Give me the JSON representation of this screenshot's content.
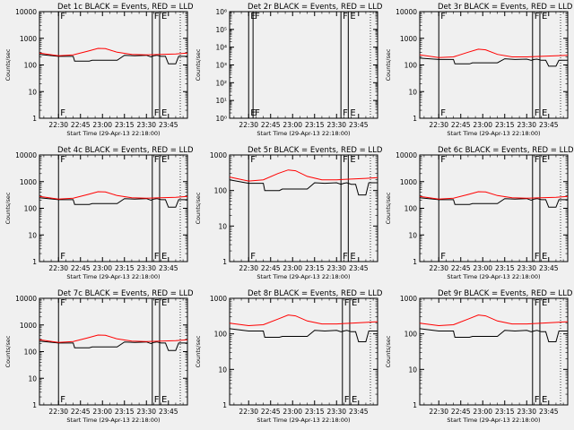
{
  "colors": {
    "background": "#f0f0f0",
    "events": "#000000",
    "lld": "#ff0000"
  },
  "shared": {
    "xlabel": "Start Time (29-Apr-13 22:18:00)",
    "ylabel": "Counts/sec",
    "x_tick_labels": [
      "22:30",
      "22:45",
      "23:00",
      "23:15",
      "23:30",
      "23:45"
    ],
    "x_ticks_minutes": [
      0,
      15,
      30,
      45,
      60,
      75
    ],
    "xlim_minutes_after_2230": [
      -13,
      88
    ],
    "marker_F": "F",
    "marker_E": "E"
  },
  "chart_data": [
    {
      "type": "line",
      "title": "Det 1c BLACK = Events, RED = LLD",
      "yscale": "log",
      "ylim": [
        1,
        10000
      ],
      "y_tick_labels": [
        "1",
        "10",
        "100",
        "1000",
        "10000"
      ],
      "series": [
        {
          "color": "events",
          "x": [
            -13,
            0,
            10,
            11,
            21,
            23,
            40,
            45,
            52,
            60,
            63,
            65,
            67,
            70,
            73,
            75,
            80,
            82,
            88
          ],
          "y": [
            250,
            210,
            210,
            140,
            140,
            150,
            150,
            230,
            220,
            230,
            200,
            220,
            230,
            210,
            210,
            110,
            110,
            210,
            210
          ]
        },
        {
          "color": "lld",
          "x": [
            -13,
            0,
            10,
            20,
            27,
            32,
            40,
            50,
            60,
            70,
            80,
            88
          ],
          "y": [
            280,
            220,
            240,
            330,
            420,
            410,
            300,
            250,
            240,
            250,
            260,
            280
          ]
        }
      ],
      "markers": [
        {
          "label": "F",
          "x": 0
        },
        {
          "label": "F",
          "x": 64
        },
        {
          "label": "E",
          "x": 69
        }
      ]
    },
    {
      "type": "line",
      "title": "Det 2r BLACK = Events, RED = LLD",
      "yscale": "log",
      "ylim": [
        1,
        1000000
      ],
      "y_tick_labels": [
        "10⁰",
        "10¹",
        "10²",
        "10³",
        "10⁴",
        "10⁵",
        "10⁶"
      ],
      "series": [],
      "markers": [
        {
          "label": "E",
          "x": 0
        },
        {
          "label": "F",
          "x": 3
        },
        {
          "label": "F",
          "x": 63
        },
        {
          "label": "E",
          "x": 68
        }
      ]
    },
    {
      "type": "line",
      "title": "Det 3r BLACK = Events, RED = LLD",
      "yscale": "log",
      "ylim": [
        1,
        10000
      ],
      "y_tick_labels": [
        "1",
        "10",
        "100",
        "1000",
        "10000"
      ],
      "series": [
        {
          "color": "events",
          "x": [
            -13,
            0,
            10,
            11,
            21,
            23,
            40,
            45,
            52,
            60,
            63,
            65,
            67,
            70,
            73,
            75,
            80,
            82,
            88
          ],
          "y": [
            180,
            160,
            160,
            110,
            110,
            120,
            120,
            170,
            160,
            165,
            150,
            160,
            165,
            150,
            150,
            90,
            90,
            150,
            150
          ]
        },
        {
          "color": "lld",
          "x": [
            -13,
            0,
            10,
            20,
            27,
            32,
            40,
            50,
            60,
            70,
            80,
            88
          ],
          "y": [
            240,
            190,
            200,
            300,
            390,
            370,
            250,
            200,
            200,
            210,
            220,
            230
          ]
        }
      ],
      "markers": [
        {
          "label": "F",
          "x": 0
        },
        {
          "label": "F",
          "x": 64
        },
        {
          "label": "E",
          "x": 69
        }
      ]
    },
    {
      "type": "line",
      "title": "Det 4c BLACK = Events, RED = LLD",
      "yscale": "log",
      "ylim": [
        1,
        10000
      ],
      "y_tick_labels": [
        "1",
        "10",
        "100",
        "1000",
        "10000"
      ],
      "series": [
        {
          "color": "events",
          "x": [
            -13,
            0,
            10,
            11,
            21,
            23,
            40,
            45,
            52,
            60,
            63,
            65,
            67,
            70,
            73,
            75,
            80,
            82,
            88
          ],
          "y": [
            250,
            210,
            210,
            140,
            140,
            150,
            150,
            230,
            220,
            230,
            200,
            220,
            230,
            210,
            210,
            110,
            110,
            210,
            210
          ]
        },
        {
          "color": "lld",
          "x": [
            -13,
            0,
            10,
            20,
            27,
            32,
            40,
            50,
            60,
            70,
            80,
            88
          ],
          "y": [
            280,
            220,
            240,
            330,
            420,
            410,
            300,
            250,
            240,
            250,
            260,
            280
          ]
        }
      ],
      "markers": [
        {
          "label": "F",
          "x": 0
        },
        {
          "label": "F",
          "x": 64
        },
        {
          "label": "E",
          "x": 69
        }
      ]
    },
    {
      "type": "line",
      "title": "Det 5r BLACK = Events, RED = LLD",
      "yscale": "log",
      "ylim": [
        1,
        1000
      ],
      "y_tick_labels": [
        "1",
        "10",
        "100",
        "1000"
      ],
      "series": [
        {
          "color": "events",
          "x": [
            -13,
            0,
            10,
            11,
            21,
            23,
            40,
            45,
            52,
            60,
            63,
            65,
            67,
            70,
            73,
            75,
            80,
            82,
            88
          ],
          "y": [
            200,
            160,
            160,
            100,
            100,
            110,
            110,
            165,
            160,
            165,
            150,
            160,
            165,
            150,
            150,
            75,
            75,
            165,
            165
          ]
        },
        {
          "color": "lld",
          "x": [
            -13,
            0,
            10,
            20,
            27,
            32,
            40,
            50,
            60,
            70,
            80,
            88
          ],
          "y": [
            240,
            185,
            200,
            300,
            380,
            360,
            250,
            200,
            200,
            210,
            220,
            230
          ]
        }
      ],
      "markers": [
        {
          "label": "F",
          "x": 0
        },
        {
          "label": "F",
          "x": 63
        },
        {
          "label": "E",
          "x": 68
        }
      ]
    },
    {
      "type": "line",
      "title": "Det 6c BLACK = Events, RED = LLD",
      "yscale": "log",
      "ylim": [
        1,
        10000
      ],
      "y_tick_labels": [
        "1",
        "10",
        "100",
        "1000",
        "10000"
      ],
      "series": [
        {
          "color": "events",
          "x": [
            -13,
            0,
            10,
            11,
            21,
            23,
            40,
            45,
            52,
            60,
            63,
            65,
            67,
            70,
            73,
            75,
            80,
            82,
            88
          ],
          "y": [
            250,
            210,
            210,
            140,
            140,
            150,
            150,
            230,
            220,
            230,
            200,
            220,
            230,
            210,
            210,
            110,
            110,
            210,
            210
          ]
        },
        {
          "color": "lld",
          "x": [
            -13,
            0,
            10,
            20,
            27,
            32,
            40,
            50,
            60,
            70,
            80,
            88
          ],
          "y": [
            280,
            220,
            240,
            330,
            420,
            410,
            300,
            250,
            240,
            250,
            260,
            280
          ]
        }
      ],
      "markers": [
        {
          "label": "F",
          "x": 0
        },
        {
          "label": "F",
          "x": 64
        },
        {
          "label": "E",
          "x": 69
        }
      ]
    },
    {
      "type": "line",
      "title": "Det 7c BLACK = Events, RED = LLD",
      "yscale": "log",
      "ylim": [
        1,
        10000
      ],
      "y_tick_labels": [
        "1",
        "10",
        "100",
        "1000",
        "10000"
      ],
      "series": [
        {
          "color": "events",
          "x": [
            -13,
            0,
            10,
            11,
            21,
            23,
            40,
            45,
            52,
            60,
            63,
            65,
            67,
            70,
            73,
            75,
            80,
            82,
            88
          ],
          "y": [
            250,
            210,
            210,
            140,
            140,
            150,
            150,
            230,
            220,
            230,
            200,
            220,
            230,
            210,
            210,
            110,
            110,
            210,
            210
          ]
        },
        {
          "color": "lld",
          "x": [
            -13,
            0,
            10,
            20,
            27,
            32,
            40,
            50,
            60,
            70,
            80,
            88
          ],
          "y": [
            280,
            220,
            240,
            330,
            420,
            410,
            300,
            250,
            240,
            250,
            260,
            280
          ]
        }
      ],
      "markers": [
        {
          "label": "F",
          "x": 0
        },
        {
          "label": "F",
          "x": 64
        },
        {
          "label": "E",
          "x": 69
        }
      ]
    },
    {
      "type": "line",
      "title": "Det 8r BLACK = Events, RED = LLD",
      "yscale": "log",
      "ylim": [
        1,
        1000
      ],
      "y_tick_labels": [
        "1",
        "10",
        "100",
        "1000"
      ],
      "series": [
        {
          "color": "events",
          "x": [
            -13,
            0,
            10,
            11,
            21,
            23,
            40,
            45,
            52,
            60,
            63,
            65,
            67,
            70,
            73,
            75,
            80,
            82,
            88
          ],
          "y": [
            140,
            120,
            120,
            80,
            80,
            85,
            85,
            125,
            120,
            125,
            115,
            120,
            125,
            115,
            115,
            60,
            60,
            120,
            120
          ]
        },
        {
          "color": "lld",
          "x": [
            -13,
            0,
            10,
            20,
            27,
            32,
            40,
            50,
            60,
            70,
            80,
            88
          ],
          "y": [
            200,
            170,
            180,
            260,
            340,
            320,
            230,
            190,
            190,
            200,
            210,
            220
          ]
        }
      ],
      "markers": [
        {
          "label": "F",
          "x": 64
        },
        {
          "label": "E",
          "x": 69
        }
      ]
    },
    {
      "type": "line",
      "title": "Det 9r BLACK = Events, RED = LLD",
      "yscale": "log",
      "ylim": [
        1,
        1000
      ],
      "y_tick_labels": [
        "1",
        "10",
        "100",
        "1000"
      ],
      "series": [
        {
          "color": "events",
          "x": [
            -13,
            0,
            10,
            11,
            21,
            23,
            40,
            45,
            52,
            60,
            63,
            65,
            67,
            70,
            73,
            75,
            80,
            82,
            88
          ],
          "y": [
            140,
            120,
            120,
            80,
            80,
            85,
            85,
            125,
            120,
            125,
            115,
            120,
            125,
            115,
            115,
            60,
            60,
            120,
            120
          ]
        },
        {
          "color": "lld",
          "x": [
            -13,
            0,
            10,
            20,
            27,
            32,
            40,
            50,
            60,
            70,
            80,
            88
          ],
          "y": [
            200,
            170,
            180,
            260,
            340,
            320,
            230,
            190,
            190,
            200,
            210,
            220
          ]
        }
      ],
      "markers": [
        {
          "label": "F",
          "x": 64
        },
        {
          "label": "E",
          "x": 69
        }
      ]
    }
  ]
}
